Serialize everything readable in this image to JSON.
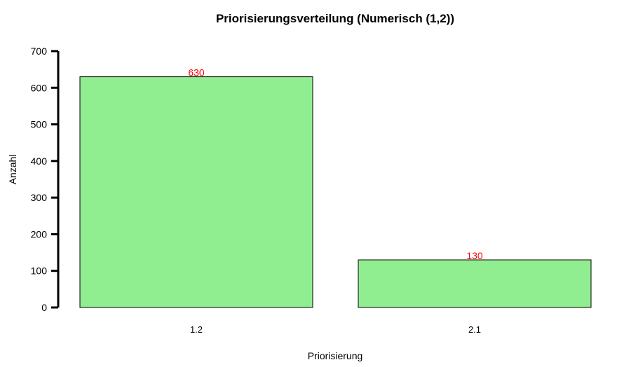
{
  "chart_data": {
    "type": "bar",
    "title": "Priorisierungsverteilung (Numerisch (1,2))",
    "xlabel": "Priorisierung",
    "ylabel": "Anzahl",
    "categories": [
      "1.2",
      "2.1"
    ],
    "values": [
      630,
      130
    ],
    "data_labels": [
      "630",
      "130"
    ],
    "ylim": [
      0,
      700
    ],
    "yticks": [
      "0",
      "100",
      "200",
      "300",
      "400",
      "500",
      "600",
      "700"
    ],
    "bar_color": "#90EE90",
    "bar_border_color": "#000000",
    "label_color": "#FF0000",
    "grid": false,
    "legend": "none"
  }
}
